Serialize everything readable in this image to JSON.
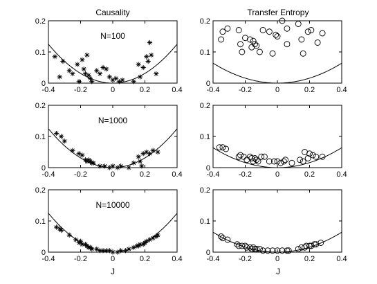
{
  "figure": {
    "col_titles": [
      "Causality",
      "Transfer Entropy"
    ],
    "xlabel": "J"
  },
  "chart_data": [
    {
      "type": "scatter",
      "panel": "causality-n100",
      "title": "",
      "annotation": "N=100",
      "marker": "star",
      "xlabel": "",
      "ylabel": "",
      "xlim": [
        -0.4,
        0.4
      ],
      "ylim": [
        0,
        0.2
      ],
      "xticks": [
        "-0.4",
        "-0.2",
        "0",
        "0.2",
        "0.4"
      ],
      "yticks": [
        "0",
        "0.1",
        "0.2"
      ],
      "curve": {
        "coef": 0.78
      },
      "points": [
        [
          -0.36,
          0.085
        ],
        [
          -0.33,
          0.02
        ],
        [
          -0.31,
          0.07
        ],
        [
          -0.27,
          0.04
        ],
        [
          -0.25,
          0.03
        ],
        [
          -0.22,
          0.06
        ],
        [
          -0.21,
          0.005
        ],
        [
          -0.19,
          0.075
        ],
        [
          -0.18,
          0.045
        ],
        [
          -0.17,
          0.03
        ],
        [
          -0.16,
          0.09
        ],
        [
          -0.15,
          0.025
        ],
        [
          -0.14,
          0.015
        ],
        [
          -0.13,
          0.005
        ],
        [
          -0.1,
          0.04
        ],
        [
          -0.08,
          0.03
        ],
        [
          -0.06,
          0.05
        ],
        [
          -0.04,
          0.045
        ],
        [
          -0.02,
          0.02
        ],
        [
          0.0,
          0.01
        ],
        [
          0.02,
          0.015
        ],
        [
          0.04,
          0.005
        ],
        [
          0.06,
          0.01
        ],
        [
          0.13,
          0.005
        ],
        [
          0.16,
          0.06
        ],
        [
          0.17,
          0.02
        ],
        [
          0.19,
          0.05
        ],
        [
          0.21,
          0.085
        ],
        [
          0.22,
          0.07
        ],
        [
          0.23,
          0.13
        ],
        [
          0.24,
          0.09
        ],
        [
          0.27,
          0.03
        ]
      ]
    },
    {
      "type": "scatter",
      "panel": "transfer-entropy-n100",
      "title": "",
      "marker": "circle",
      "xlabel": "",
      "ylabel": "",
      "xlim": [
        -0.4,
        0.4
      ],
      "ylim": [
        0,
        0.2
      ],
      "xticks": [
        "-0.4",
        "-0.2",
        "0",
        "0.2",
        "0.4"
      ],
      "yticks": [
        "0",
        "0.1",
        "0.2"
      ],
      "curve": {
        "coef": 0.4
      },
      "points": [
        [
          -0.35,
          0.14
        ],
        [
          -0.34,
          0.165
        ],
        [
          -0.31,
          0.175
        ],
        [
          -0.24,
          0.17
        ],
        [
          -0.23,
          0.125
        ],
        [
          -0.22,
          0.1
        ],
        [
          -0.2,
          0.145
        ],
        [
          -0.17,
          0.14
        ],
        [
          -0.16,
          0.115
        ],
        [
          -0.15,
          0.135
        ],
        [
          -0.14,
          0.125
        ],
        [
          -0.13,
          0.12
        ],
        [
          -0.11,
          0.1
        ],
        [
          -0.09,
          0.17
        ],
        [
          -0.05,
          0.165
        ],
        [
          -0.03,
          0.095
        ],
        [
          -0.01,
          0.155
        ],
        [
          0.0,
          0.15
        ],
        [
          0.03,
          0.2
        ],
        [
          0.06,
          0.175
        ],
        [
          0.06,
          0.125
        ],
        [
          0.13,
          0.19
        ],
        [
          0.15,
          0.14
        ],
        [
          0.16,
          0.095
        ],
        [
          0.19,
          0.165
        ],
        [
          0.21,
          0.17
        ],
        [
          0.25,
          0.13
        ],
        [
          0.28,
          0.16
        ]
      ]
    },
    {
      "type": "scatter",
      "panel": "causality-n1000",
      "title": "",
      "annotation": "N=1000",
      "marker": "star",
      "xlabel": "",
      "ylabel": "",
      "xlim": [
        -0.4,
        0.4
      ],
      "ylim": [
        0,
        0.2
      ],
      "xticks": [
        "-0.4",
        "-0.2",
        "0",
        "0.2",
        "0.4"
      ],
      "yticks": [
        "0",
        "0.1",
        "0.2"
      ],
      "curve": {
        "coef": 0.78
      },
      "points": [
        [
          -0.35,
          0.11
        ],
        [
          -0.32,
          0.1
        ],
        [
          -0.3,
          0.085
        ],
        [
          -0.25,
          0.055
        ],
        [
          -0.21,
          0.045
        ],
        [
          -0.19,
          0.04
        ],
        [
          -0.17,
          0.025
        ],
        [
          -0.16,
          0.02
        ],
        [
          -0.15,
          0.025
        ],
        [
          -0.14,
          0.02
        ],
        [
          -0.13,
          0.015
        ],
        [
          -0.12,
          0.015
        ],
        [
          -0.08,
          0.005
        ],
        [
          -0.05,
          0.005
        ],
        [
          -0.02,
          0.0
        ],
        [
          0.0,
          0.005
        ],
        [
          0.03,
          0.0
        ],
        [
          0.05,
          0.005
        ],
        [
          0.1,
          0.0
        ],
        [
          0.13,
          0.015
        ],
        [
          0.16,
          0.035
        ],
        [
          0.17,
          0.02
        ],
        [
          0.18,
          0.005
        ],
        [
          0.19,
          0.045
        ],
        [
          0.21,
          0.05
        ],
        [
          0.23,
          0.045
        ],
        [
          0.25,
          0.055
        ],
        [
          0.28,
          0.05
        ]
      ]
    },
    {
      "type": "scatter",
      "panel": "transfer-entropy-n1000",
      "title": "",
      "marker": "circle",
      "xlabel": "",
      "ylabel": "",
      "xlim": [
        -0.4,
        0.4
      ],
      "ylim": [
        0,
        0.2
      ],
      "xticks": [
        "-0.4",
        "-0.2",
        "0",
        "0.2",
        "0.4"
      ],
      "yticks": [
        "0",
        "0.1",
        "0.2"
      ],
      "curve": {
        "coef": 0.4
      },
      "points": [
        [
          -0.36,
          0.065
        ],
        [
          -0.34,
          0.065
        ],
        [
          -0.32,
          0.06
        ],
        [
          -0.24,
          0.035
        ],
        [
          -0.23,
          0.04
        ],
        [
          -0.21,
          0.035
        ],
        [
          -0.19,
          0.025
        ],
        [
          -0.17,
          0.035
        ],
        [
          -0.16,
          0.03
        ],
        [
          -0.15,
          0.02
        ],
        [
          -0.14,
          0.03
        ],
        [
          -0.13,
          0.025
        ],
        [
          -0.12,
          0.02
        ],
        [
          -0.1,
          0.035
        ],
        [
          -0.08,
          0.035
        ],
        [
          -0.05,
          0.02
        ],
        [
          -0.02,
          0.02
        ],
        [
          0.0,
          0.02
        ],
        [
          0.02,
          0.015
        ],
        [
          0.04,
          0.02
        ],
        [
          0.05,
          0.025
        ],
        [
          0.09,
          0.015
        ],
        [
          0.14,
          0.025
        ],
        [
          0.16,
          0.02
        ],
        [
          0.17,
          0.05
        ],
        [
          0.19,
          0.03
        ],
        [
          0.2,
          0.045
        ],
        [
          0.22,
          0.04
        ],
        [
          0.24,
          0.035
        ],
        [
          0.28,
          0.035
        ]
      ]
    },
    {
      "type": "scatter",
      "panel": "causality-n10000",
      "title": "",
      "annotation": "N=10000",
      "marker": "star",
      "xlabel": "J",
      "ylabel": "",
      "xlim": [
        -0.4,
        0.4
      ],
      "ylim": [
        0,
        0.2
      ],
      "xticks": [
        "-0.4",
        "-0.2",
        "0",
        "0.2",
        "0.4"
      ],
      "yticks": [
        "0",
        "0.1",
        "0.2"
      ],
      "curve": {
        "coef": 0.78
      },
      "points": [
        [
          -0.35,
          0.08
        ],
        [
          -0.33,
          0.075
        ],
        [
          -0.32,
          0.07
        ],
        [
          -0.27,
          0.055
        ],
        [
          -0.23,
          0.04
        ],
        [
          -0.21,
          0.03
        ],
        [
          -0.2,
          0.035
        ],
        [
          -0.19,
          0.025
        ],
        [
          -0.17,
          0.025
        ],
        [
          -0.16,
          0.02
        ],
        [
          -0.15,
          0.015
        ],
        [
          -0.14,
          0.015
        ],
        [
          -0.13,
          0.01
        ],
        [
          -0.1,
          0.01
        ],
        [
          -0.08,
          0.005
        ],
        [
          -0.06,
          0.005
        ],
        [
          -0.04,
          0.005
        ],
        [
          -0.02,
          0.005
        ],
        [
          0.0,
          0.0
        ],
        [
          0.03,
          0.0
        ],
        [
          0.05,
          0.005
        ],
        [
          0.08,
          0.005
        ],
        [
          0.1,
          0.01
        ],
        [
          0.13,
          0.015
        ],
        [
          0.15,
          0.02
        ],
        [
          0.16,
          0.02
        ],
        [
          0.17,
          0.025
        ],
        [
          0.19,
          0.025
        ],
        [
          0.2,
          0.03
        ],
        [
          0.21,
          0.035
        ],
        [
          0.23,
          0.04
        ],
        [
          0.25,
          0.045
        ],
        [
          0.27,
          0.05
        ],
        [
          0.28,
          0.055
        ]
      ]
    },
    {
      "type": "scatter",
      "panel": "transfer-entropy-n10000",
      "title": "",
      "marker": "circle",
      "xlabel": "J",
      "ylabel": "",
      "xlim": [
        -0.4,
        0.4
      ],
      "ylim": [
        0,
        0.2
      ],
      "xticks": [
        "-0.4",
        "-0.2",
        "0",
        "0.2",
        "0.4"
      ],
      "yticks": [
        "0",
        "0.1",
        "0.2"
      ],
      "curve": {
        "coef": 0.4
      },
      "points": [
        [
          -0.35,
          0.05
        ],
        [
          -0.34,
          0.045
        ],
        [
          -0.31,
          0.04
        ],
        [
          -0.25,
          0.025
        ],
        [
          -0.24,
          0.02
        ],
        [
          -0.22,
          0.02
        ],
        [
          -0.2,
          0.02
        ],
        [
          -0.19,
          0.015
        ],
        [
          -0.17,
          0.015
        ],
        [
          -0.16,
          0.01
        ],
        [
          -0.15,
          0.015
        ],
        [
          -0.14,
          0.01
        ],
        [
          -0.13,
          0.01
        ],
        [
          -0.11,
          0.01
        ],
        [
          -0.09,
          0.005
        ],
        [
          -0.06,
          0.005
        ],
        [
          -0.03,
          0.005
        ],
        [
          0.0,
          0.005
        ],
        [
          0.03,
          0.005
        ],
        [
          0.06,
          0.005
        ],
        [
          0.07,
          0.005
        ],
        [
          0.13,
          0.01
        ],
        [
          0.15,
          0.015
        ],
        [
          0.17,
          0.015
        ],
        [
          0.18,
          0.02
        ],
        [
          0.2,
          0.02
        ],
        [
          0.21,
          0.02
        ],
        [
          0.23,
          0.025
        ],
        [
          0.24,
          0.025
        ],
        [
          0.27,
          0.03
        ]
      ]
    }
  ]
}
